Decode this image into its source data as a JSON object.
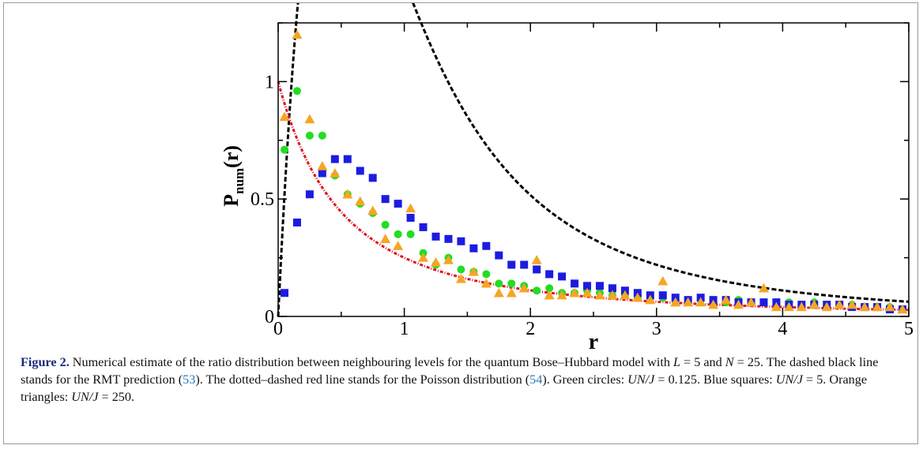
{
  "figure": {
    "label": "Figure 2.",
    "caption_parts": [
      {
        "t": "text",
        "v": " Numerical estimate of the ratio distribution between neighbouring levels for the quantum Bose–Hubbard model with "
      },
      {
        "t": "math",
        "v": "L"
      },
      {
        "t": "text",
        "v": " = 5 and "
      },
      {
        "t": "math",
        "v": "N"
      },
      {
        "t": "text",
        "v": " = 25. The dashed black line stands for the RMT prediction ("
      },
      {
        "t": "ref",
        "v": "53"
      },
      {
        "t": "text",
        "v": "). The dotted–dashed red line stands for the Poisson distribution ("
      },
      {
        "t": "ref",
        "v": "54"
      },
      {
        "t": "text",
        "v": "). Green circles: "
      },
      {
        "t": "math",
        "v": "UN/J"
      },
      {
        "t": "text",
        "v": " = 0.125. Blue squares: "
      },
      {
        "t": "math",
        "v": "UN/J"
      },
      {
        "t": "text",
        "v": " = 5. Orange triangles: "
      },
      {
        "t": "math",
        "v": "UN/J"
      },
      {
        "t": "text",
        "v": " = 250."
      }
    ]
  },
  "chart_data": {
    "type": "scatter",
    "xlabel": "r",
    "ylabel_main": "P",
    "ylabel_sub": "num",
    "ylabel_tail": "(r)",
    "xlim": [
      0,
      5
    ],
    "ylim": [
      0,
      1.25
    ],
    "x_ticks": [
      0,
      1,
      2,
      3,
      4,
      5
    ],
    "x_tick_labels": [
      "0",
      "1",
      "2",
      "3",
      "4",
      "5"
    ],
    "y_ticks": [
      0,
      0.5,
      1
    ],
    "y_tick_labels": [
      "0",
      "0.5",
      "1"
    ],
    "grid": false,
    "curves": [
      {
        "kind": "rmt",
        "style": "dashed",
        "color": "#000000"
      },
      {
        "kind": "poisson",
        "style": "dotted-dashed",
        "color": "#e0141e"
      }
    ],
    "series": [
      {
        "marker": "circle",
        "color": "#22dd22",
        "x": [
          0.05,
          0.15,
          0.25,
          0.35,
          0.45,
          0.55,
          0.65,
          0.75,
          0.85,
          0.95,
          1.05,
          1.15,
          1.25,
          1.35,
          1.45,
          1.55,
          1.65,
          1.75,
          1.85,
          1.95,
          2.05,
          2.15,
          2.25,
          2.35,
          2.45,
          2.55,
          2.65,
          2.75,
          2.85,
          2.95,
          3.05,
          3.15,
          3.25,
          3.35,
          3.45,
          3.55,
          3.65,
          3.75,
          3.85,
          3.95,
          4.05,
          4.15,
          4.25,
          4.35,
          4.45,
          4.55,
          4.65,
          4.75,
          4.85,
          4.95
        ],
        "y": [
          0.71,
          0.96,
          0.77,
          0.77,
          0.6,
          0.52,
          0.48,
          0.44,
          0.39,
          0.35,
          0.35,
          0.27,
          0.22,
          0.25,
          0.2,
          0.19,
          0.18,
          0.14,
          0.14,
          0.13,
          0.11,
          0.12,
          0.1,
          0.1,
          0.11,
          0.1,
          0.09,
          0.09,
          0.08,
          0.08,
          0.08,
          0.07,
          0.07,
          0.07,
          0.06,
          0.06,
          0.07,
          0.06,
          0.06,
          0.05,
          0.06,
          0.05,
          0.06,
          0.05,
          0.05,
          0.05,
          0.04,
          0.04,
          0.04,
          0.03
        ]
      },
      {
        "marker": "square",
        "color": "#1c1ce0",
        "x": [
          0.05,
          0.15,
          0.25,
          0.35,
          0.45,
          0.55,
          0.65,
          0.75,
          0.85,
          0.95,
          1.05,
          1.15,
          1.25,
          1.35,
          1.45,
          1.55,
          1.65,
          1.75,
          1.85,
          1.95,
          2.05,
          2.15,
          2.25,
          2.35,
          2.45,
          2.55,
          2.65,
          2.75,
          2.85,
          2.95,
          3.05,
          3.15,
          3.25,
          3.35,
          3.45,
          3.55,
          3.65,
          3.75,
          3.85,
          3.95,
          4.05,
          4.15,
          4.25,
          4.35,
          4.45,
          4.55,
          4.65,
          4.75,
          4.85,
          4.95
        ],
        "y": [
          0.1,
          0.4,
          0.52,
          0.61,
          0.67,
          0.67,
          0.62,
          0.59,
          0.5,
          0.48,
          0.42,
          0.38,
          0.34,
          0.33,
          0.32,
          0.29,
          0.3,
          0.26,
          0.22,
          0.22,
          0.2,
          0.18,
          0.17,
          0.14,
          0.13,
          0.13,
          0.12,
          0.11,
          0.1,
          0.09,
          0.09,
          0.08,
          0.07,
          0.08,
          0.07,
          0.07,
          0.06,
          0.06,
          0.06,
          0.06,
          0.05,
          0.05,
          0.05,
          0.05,
          0.05,
          0.04,
          0.04,
          0.04,
          0.03,
          0.03
        ]
      },
      {
        "marker": "triangle",
        "color": "#f5a524",
        "x": [
          0.05,
          0.15,
          0.25,
          0.35,
          0.45,
          0.55,
          0.65,
          0.75,
          0.85,
          0.95,
          1.05,
          1.15,
          1.25,
          1.35,
          1.45,
          1.55,
          1.65,
          1.75,
          1.85,
          1.95,
          2.05,
          2.15,
          2.25,
          2.35,
          2.45,
          2.55,
          2.65,
          2.75,
          2.85,
          2.95,
          3.05,
          3.15,
          3.25,
          3.35,
          3.45,
          3.55,
          3.65,
          3.75,
          3.85,
          3.95,
          4.05,
          4.15,
          4.25,
          4.35,
          4.45,
          4.55,
          4.65,
          4.75,
          4.85,
          4.95
        ],
        "y": [
          0.85,
          1.2,
          0.84,
          0.64,
          0.61,
          0.52,
          0.49,
          0.45,
          0.33,
          0.3,
          0.46,
          0.25,
          0.23,
          0.24,
          0.16,
          0.19,
          0.14,
          0.1,
          0.1,
          0.12,
          0.24,
          0.09,
          0.09,
          0.1,
          0.1,
          0.09,
          0.09,
          0.09,
          0.08,
          0.07,
          0.15,
          0.06,
          0.06,
          0.06,
          0.05,
          0.07,
          0.05,
          0.06,
          0.12,
          0.04,
          0.04,
          0.04,
          0.05,
          0.04,
          0.05,
          0.05,
          0.04,
          0.04,
          0.04,
          0.03
        ]
      }
    ]
  }
}
